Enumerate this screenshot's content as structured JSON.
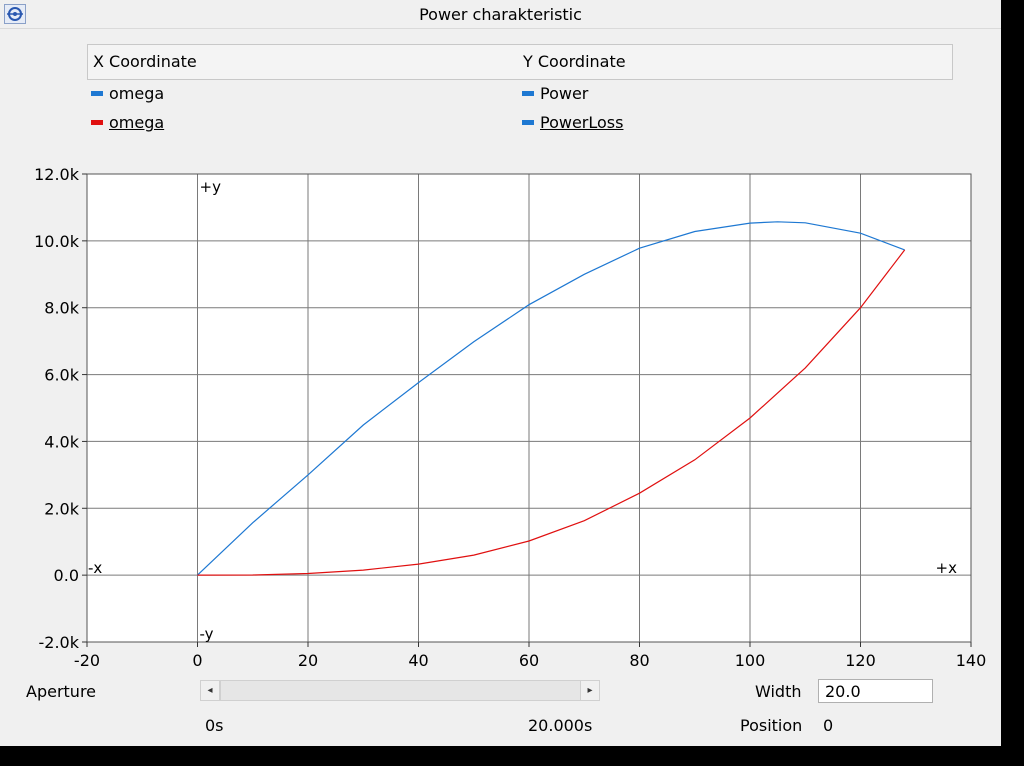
{
  "window": {
    "title": "Power charakteristic"
  },
  "legend": {
    "x_header": "X Coordinate",
    "y_header": "Y Coordinate",
    "rows": [
      {
        "x": "omega",
        "y": "Power",
        "x_color": "#1e78d2",
        "y_color": "#1e78d2"
      },
      {
        "x": "omega",
        "y": "PowerLoss",
        "x_color": "#e01010",
        "y_color": "#1e78d2"
      }
    ]
  },
  "chart_data": {
    "type": "line",
    "xlim": [
      -20,
      140
    ],
    "ylim": [
      -2000,
      12000
    ],
    "xticks": [
      -20,
      0,
      20,
      40,
      60,
      80,
      100,
      120,
      140
    ],
    "xtick_labels": [
      "-20",
      "0",
      "20",
      "40",
      "60",
      "80",
      "100",
      "120",
      "140"
    ],
    "yticks": [
      -2000,
      0,
      2000,
      4000,
      6000,
      8000,
      10000,
      12000
    ],
    "ytick_labels": [
      "-2.0k",
      "0.0",
      "2.0k",
      "4.0k",
      "6.0k",
      "8.0k",
      "10.0k",
      "12.0k"
    ],
    "grid": true,
    "axis_marks": {
      "pos_y": "+y",
      "neg_y": "-y",
      "pos_x": "+x",
      "neg_x": "-x"
    },
    "series": [
      {
        "name": "Power",
        "color": "#1e78d2",
        "x": [
          0,
          10,
          20,
          30,
          40,
          50,
          60,
          70,
          80,
          90,
          100,
          105,
          110,
          120,
          128
        ],
        "y": [
          0,
          1570,
          3000,
          4490,
          5760,
          6980,
          8090,
          9000,
          9780,
          10280,
          10530,
          10570,
          10540,
          10230,
          9730
        ]
      },
      {
        "name": "PowerLoss",
        "color": "#e01010",
        "x": [
          0,
          10,
          20,
          30,
          40,
          50,
          60,
          70,
          80,
          90,
          100,
          110,
          120,
          128
        ],
        "y": [
          0,
          5,
          50,
          150,
          330,
          600,
          1020,
          1630,
          2450,
          3450,
          4700,
          6200,
          8000,
          9730
        ]
      }
    ]
  },
  "controls": {
    "aperture_label": "Aperture",
    "width_label": "Width",
    "width_value": "20.0",
    "start_time": "0s",
    "end_time": "20.000s",
    "position_label": "Position",
    "position_value": "0",
    "left_arrow": "◂",
    "right_arrow": "▸"
  }
}
